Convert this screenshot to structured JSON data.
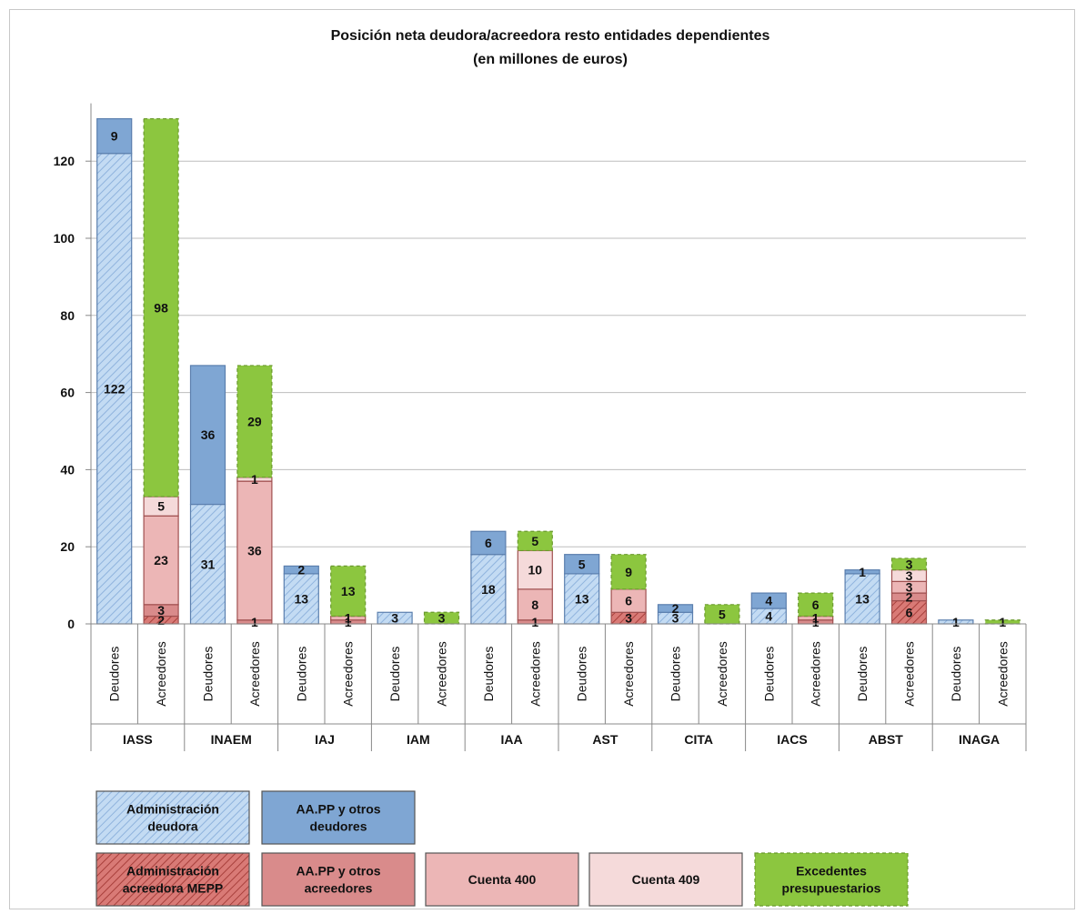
{
  "chart_data": {
    "type": "bar",
    "stacked": true,
    "title": "Posición neta deudora/acreedora  resto entidades dependientes",
    "subtitle": "(en millones de euros)",
    "xlabel": "",
    "ylabel": "",
    "ylim": [
      0,
      130
    ],
    "yticks": [
      0,
      20,
      40,
      60,
      80,
      100,
      120
    ],
    "grid": true,
    "legend_position": "bottom",
    "categories": [
      "IASS",
      "INAEM",
      "IAJ",
      "IAM",
      "IAA",
      "AST",
      "CITA",
      "IACS",
      "ABST",
      "INAGA"
    ],
    "subcategories": [
      "Deudores",
      "Acreedores"
    ],
    "series": [
      {
        "name": "Administración deudora",
        "group": "Deudores",
        "color": "#b8d3f0",
        "pattern": "hatch",
        "values": [
          122,
          31,
          13,
          3,
          18,
          13,
          3,
          4,
          13,
          1
        ]
      },
      {
        "name": "AA.PP y otros deudores",
        "group": "Deudores",
        "color": "#7fa6d3",
        "pattern": "solid",
        "values": [
          9,
          36,
          2,
          0,
          6,
          5,
          2,
          4,
          1,
          0
        ]
      },
      {
        "name": "Administración acreedora MEPP",
        "group": "Acreedores",
        "color": "#c0504d",
        "pattern": "hatch",
        "values": [
          2,
          0,
          0,
          0,
          0,
          3,
          0,
          0,
          6,
          0
        ]
      },
      {
        "name": "AA.PP y otros acreedores",
        "group": "Acreedores",
        "color": "#d98b8b",
        "pattern": "solid",
        "values": [
          3,
          1,
          1,
          0,
          1,
          0,
          0,
          1,
          2,
          0
        ]
      },
      {
        "name": "Cuenta 400",
        "group": "Acreedores",
        "color": "#ecb6b6",
        "pattern": "solid",
        "values": [
          23,
          36,
          1,
          0,
          8,
          6,
          0,
          1,
          3,
          0
        ]
      },
      {
        "name": "Cuenta 409",
        "group": "Acreedores",
        "color": "#f5dada",
        "pattern": "solid",
        "values": [
          5,
          1,
          0,
          0,
          10,
          0,
          0,
          0,
          3,
          0
        ]
      },
      {
        "name": "Excedentes presupuestarios",
        "group": "Acreedores",
        "color": "#8cc63f",
        "pattern": "dashed",
        "values": [
          98,
          29,
          13,
          3,
          5,
          9,
          5,
          6,
          3,
          1
        ]
      }
    ]
  },
  "legend": [
    {
      "lines": [
        "Administración",
        "deudora"
      ],
      "color": "#b8d3f0",
      "pattern": "hatch"
    },
    {
      "lines": [
        "AA.PP y otros",
        "deudores"
      ],
      "color": "#7fa6d3",
      "pattern": "solid"
    },
    {
      "lines": [
        "Administración",
        "acreedora MEPP"
      ],
      "color": "#c0504d",
      "pattern": "hatch"
    },
    {
      "lines": [
        "AA.PP y otros",
        "acreedores"
      ],
      "color": "#d98b8b",
      "pattern": "solid"
    },
    {
      "lines": [
        "Cuenta 400"
      ],
      "color": "#ecb6b6",
      "pattern": "solid"
    },
    {
      "lines": [
        "Cuenta 409"
      ],
      "color": "#f5dada",
      "pattern": "solid"
    },
    {
      "lines": [
        "Excedentes",
        "presupuestarios"
      ],
      "color": "#8cc63f",
      "pattern": "dashed"
    }
  ]
}
